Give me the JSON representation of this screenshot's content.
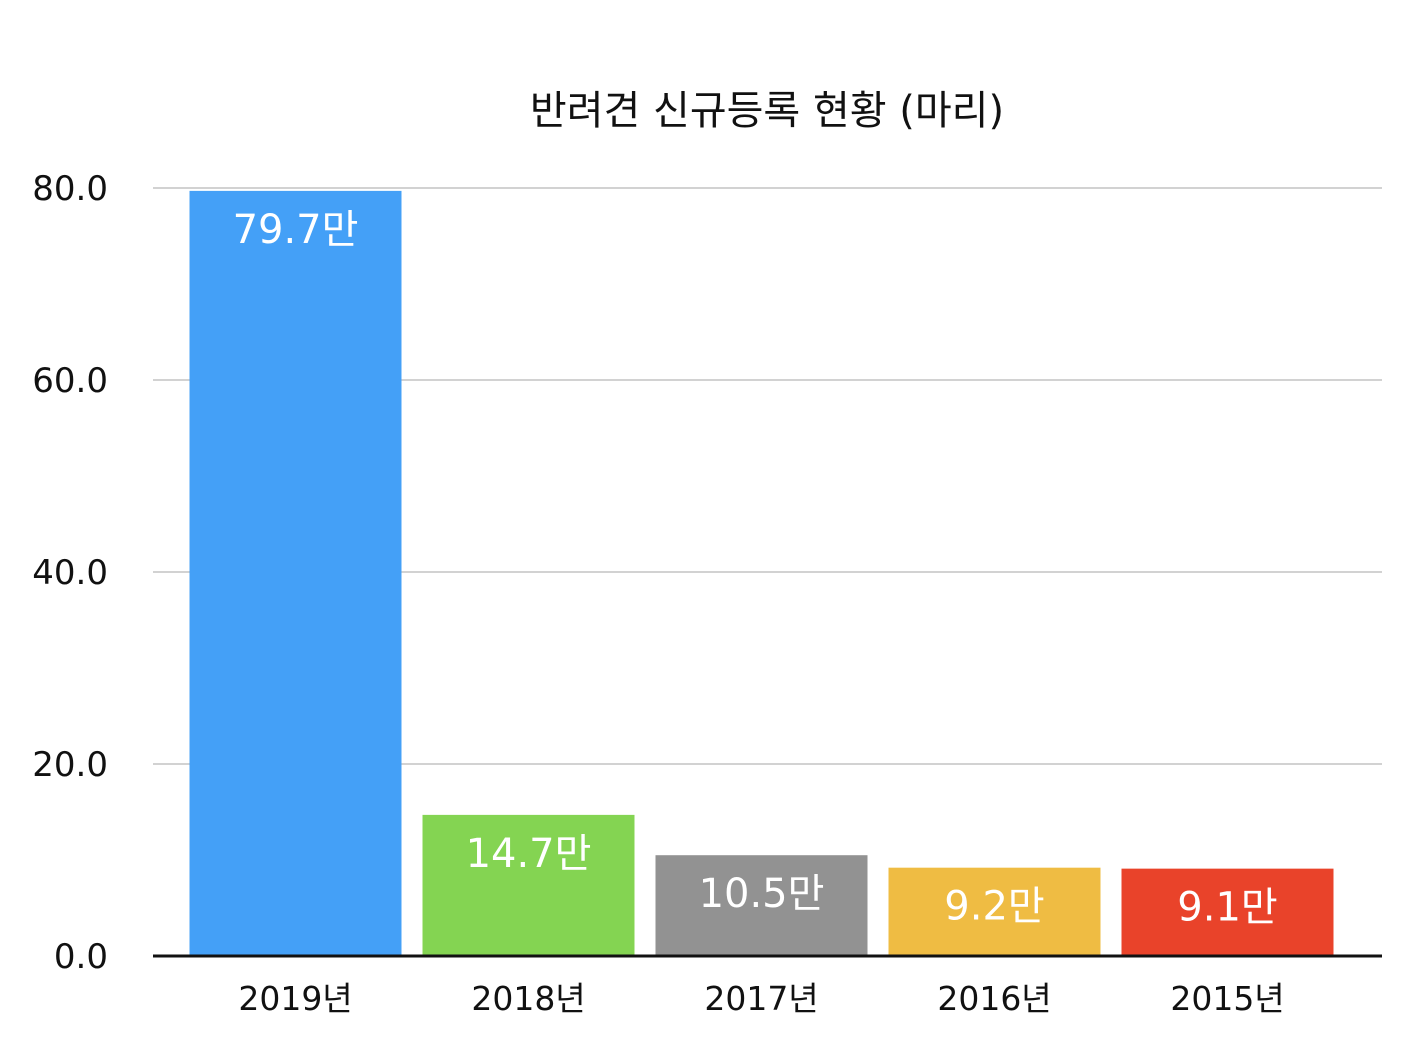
{
  "chart_data": {
    "type": "bar",
    "title": "반려견 신규등록 현황 (마리)",
    "categories": [
      "2019년",
      "2018년",
      "2017년",
      "2016년",
      "2015년"
    ],
    "values": [
      79.7,
      14.7,
      10.5,
      9.2,
      9.1
    ],
    "data_labels": [
      "79.7만",
      "14.7만",
      "10.5만",
      "9.2만",
      "9.1만"
    ],
    "colors": [
      "#44a0f7",
      "#84d452",
      "#929292",
      "#efbc43",
      "#e9432a"
    ],
    "yticks": [
      "0.0",
      "20.0",
      "40.0",
      "60.0",
      "80.0"
    ],
    "ylim": [
      0,
      80
    ],
    "grid": true,
    "xlabel": "",
    "ylabel": ""
  }
}
